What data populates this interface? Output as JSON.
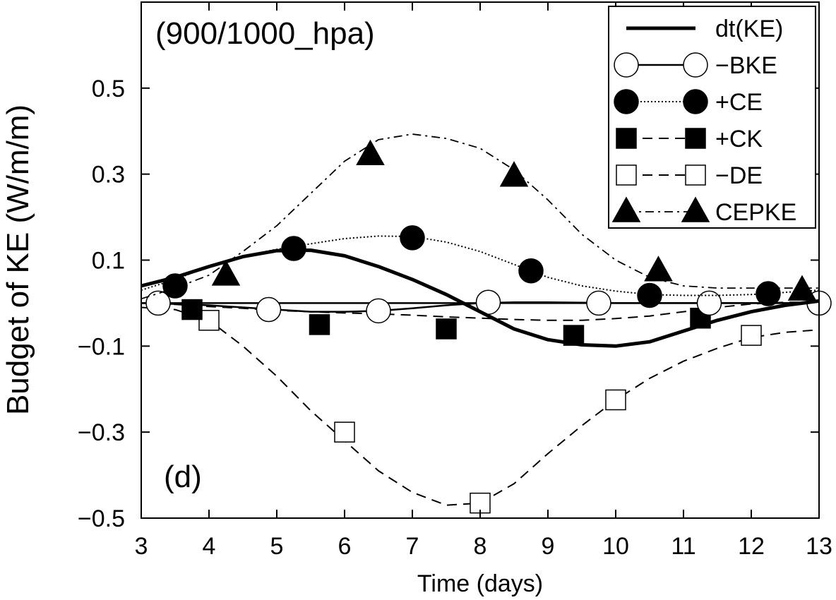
{
  "chart_data": {
    "type": "line",
    "title": "(900/1000_hpa)",
    "panel_label": "(d)",
    "xlabel": "Time (days)",
    "ylabel": "Budget of KE (W/m/m)",
    "xlim": [
      3,
      13
    ],
    "ylim": [
      -0.5,
      0.7
    ],
    "xticks": [
      3,
      4,
      5,
      6,
      7,
      8,
      9,
      10,
      11,
      12,
      13
    ],
    "yticks": [
      -0.5,
      -0.3,
      -0.1,
      0.1,
      0.3,
      0.5
    ],
    "ytick_labels": [
      "−0.5",
      "−0.3",
      "−0.1",
      "0.1",
      "0.3",
      "0.5"
    ],
    "legend_position": "top-right",
    "series": [
      {
        "name": "dt(KE)",
        "legend_label": "dt(KE)",
        "line_style": "thick-solid",
        "marker": "none",
        "curve": [
          [
            3,
            0.04
          ],
          [
            3.5,
            0.06
          ],
          [
            4,
            0.085
          ],
          [
            4.5,
            0.108
          ],
          [
            5,
            0.122
          ],
          [
            5.5,
            0.123
          ],
          [
            6,
            0.11
          ],
          [
            6.5,
            0.085
          ],
          [
            7,
            0.055
          ],
          [
            7.5,
            0.02
          ],
          [
            8,
            -0.02
          ],
          [
            8.5,
            -0.06
          ],
          [
            9,
            -0.085
          ],
          [
            9.5,
            -0.097
          ],
          [
            10,
            -0.1
          ],
          [
            10.5,
            -0.09
          ],
          [
            11,
            -0.065
          ],
          [
            11.5,
            -0.04
          ],
          [
            12,
            -0.02
          ],
          [
            12.5,
            -0.005
          ],
          [
            13,
            0.005
          ]
        ],
        "markers": []
      },
      {
        "name": "-BKE",
        "legend_label": "−BKE",
        "line_style": "solid",
        "marker": "open-circle",
        "curve": [
          [
            3,
            0.0
          ],
          [
            3.5,
            -0.002
          ],
          [
            4,
            -0.005
          ],
          [
            4.5,
            -0.01
          ],
          [
            5,
            -0.015
          ],
          [
            5.5,
            -0.02
          ],
          [
            6,
            -0.02
          ],
          [
            6.5,
            -0.018
          ],
          [
            7,
            -0.012
          ],
          [
            7.5,
            -0.005
          ],
          [
            8,
            0.0
          ],
          [
            8.5,
            0.002
          ],
          [
            9,
            0.002
          ],
          [
            9.5,
            0.001
          ],
          [
            10,
            0.0
          ],
          [
            10.5,
            0.0
          ],
          [
            11,
            0.0
          ],
          [
            11.5,
            0.0
          ],
          [
            12,
            0.0
          ],
          [
            12.5,
            0.0
          ],
          [
            13,
            0.0
          ]
        ],
        "markers": [
          [
            3.25,
            0.0
          ],
          [
            4.88,
            -0.015
          ],
          [
            6.5,
            -0.018
          ],
          [
            8.12,
            0.002
          ],
          [
            9.75,
            0.0
          ],
          [
            11.38,
            0.0
          ],
          [
            13,
            0.0
          ]
        ]
      },
      {
        "name": "+CE",
        "legend_label": "+CE",
        "line_style": "dotted",
        "marker": "filled-circle",
        "curve": [
          [
            3,
            0.03
          ],
          [
            3.5,
            0.055
          ],
          [
            4,
            0.085
          ],
          [
            4.5,
            0.11
          ],
          [
            5,
            0.125
          ],
          [
            5.5,
            0.138
          ],
          [
            6,
            0.15
          ],
          [
            6.5,
            0.156
          ],
          [
            7,
            0.155
          ],
          [
            7.5,
            0.142
          ],
          [
            8,
            0.12
          ],
          [
            8.5,
            0.09
          ],
          [
            9,
            0.06
          ],
          [
            9.5,
            0.04
          ],
          [
            10,
            0.028
          ],
          [
            10.5,
            0.02
          ],
          [
            11,
            0.018
          ],
          [
            11.5,
            0.018
          ],
          [
            12,
            0.02
          ],
          [
            12.5,
            0.025
          ],
          [
            13,
            0.03
          ]
        ],
        "markers": [
          [
            3.5,
            0.04
          ],
          [
            5.25,
            0.127
          ],
          [
            7,
            0.152
          ],
          [
            8.75,
            0.075
          ],
          [
            10.5,
            0.018
          ],
          [
            12.25,
            0.022
          ]
        ]
      },
      {
        "name": "+CK",
        "legend_label": "+CK",
        "line_style": "dashed",
        "marker": "filled-square",
        "curve": [
          [
            3,
            0.0
          ],
          [
            3.5,
            -0.003
          ],
          [
            4,
            -0.008
          ],
          [
            4.5,
            -0.012
          ],
          [
            5,
            -0.017
          ],
          [
            5.5,
            -0.02
          ],
          [
            6,
            -0.023
          ],
          [
            6.5,
            -0.025
          ],
          [
            7,
            -0.028
          ],
          [
            7.5,
            -0.032
          ],
          [
            8,
            -0.035
          ],
          [
            8.5,
            -0.038
          ],
          [
            9,
            -0.04
          ],
          [
            9.5,
            -0.04
          ],
          [
            10,
            -0.036
          ],
          [
            10.5,
            -0.03
          ],
          [
            11,
            -0.02
          ],
          [
            11.5,
            -0.01
          ],
          [
            12,
            -0.002
          ],
          [
            12.5,
            0.002
          ],
          [
            13,
            0.002
          ]
        ],
        "markers": [
          [
            3.75,
            -0.015
          ],
          [
            5.63,
            -0.05
          ],
          [
            7.5,
            -0.06
          ],
          [
            9.38,
            -0.075
          ],
          [
            11.25,
            -0.035
          ]
        ]
      },
      {
        "name": "-DE",
        "legend_label": "−DE",
        "line_style": "dashed",
        "marker": "open-square",
        "curve": [
          [
            3,
            -0.01
          ],
          [
            3.5,
            -0.015
          ],
          [
            4,
            -0.04
          ],
          [
            4.5,
            -0.1
          ],
          [
            5,
            -0.17
          ],
          [
            5.5,
            -0.25
          ],
          [
            6,
            -0.32
          ],
          [
            6.5,
            -0.39
          ],
          [
            7,
            -0.44
          ],
          [
            7.5,
            -0.47
          ],
          [
            8,
            -0.465
          ],
          [
            8.5,
            -0.42
          ],
          [
            9,
            -0.35
          ],
          [
            9.5,
            -0.285
          ],
          [
            10,
            -0.225
          ],
          [
            10.5,
            -0.175
          ],
          [
            11,
            -0.135
          ],
          [
            11.5,
            -0.105
          ],
          [
            12,
            -0.08
          ],
          [
            12.5,
            -0.068
          ],
          [
            13,
            -0.062
          ]
        ],
        "markers": [
          [
            4.0,
            -0.04
          ],
          [
            6.0,
            -0.3
          ],
          [
            8.0,
            -0.465
          ],
          [
            10.0,
            -0.225
          ],
          [
            12.0,
            -0.075
          ]
        ]
      },
      {
        "name": "CEPKE",
        "legend_label": "CEPKE",
        "line_style": "dash-dot",
        "marker": "filled-triangle",
        "curve": [
          [
            3,
            0.01
          ],
          [
            3.5,
            0.035
          ],
          [
            4,
            0.065
          ],
          [
            4.5,
            0.12
          ],
          [
            5,
            0.18
          ],
          [
            5.5,
            0.255
          ],
          [
            6,
            0.33
          ],
          [
            6.5,
            0.38
          ],
          [
            7,
            0.393
          ],
          [
            7.5,
            0.383
          ],
          [
            8,
            0.36
          ],
          [
            8.5,
            0.31
          ],
          [
            9,
            0.24
          ],
          [
            9.5,
            0.16
          ],
          [
            10,
            0.1
          ],
          [
            10.5,
            0.06
          ],
          [
            11,
            0.04
          ],
          [
            11.5,
            0.035
          ],
          [
            12,
            0.035
          ],
          [
            12.5,
            0.035
          ],
          [
            13,
            0.035
          ]
        ],
        "markers": [
          [
            4.25,
            0.065
          ],
          [
            6.38,
            0.345
          ],
          [
            8.5,
            0.295
          ],
          [
            10.63,
            0.075
          ],
          [
            12.75,
            0.03
          ]
        ]
      }
    ]
  }
}
